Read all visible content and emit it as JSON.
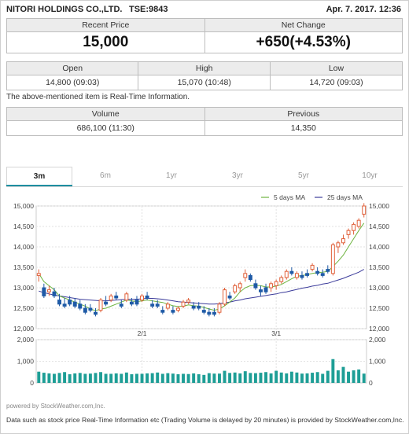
{
  "header": {
    "company": "NITORI HOLDINGS CO.,LTD.",
    "code": "TSE:9843",
    "datetime": "Apr. 7. 2017. 12:36"
  },
  "quote": {
    "recent_price_label": "Recent Price",
    "recent_price": "15,000",
    "net_change_label": "Net Change",
    "net_change": "+650(+4.53%)"
  },
  "ohl": {
    "open_label": "Open",
    "open": "14,800 (09:03)",
    "high_label": "High",
    "high": "15,070 (10:48)",
    "low_label": "Low",
    "low": "14,720 (09:03)"
  },
  "realtime_note": "The above-mentioned item is Real-Time Information.",
  "volume_block": {
    "volume_label": "Volume",
    "volume": "686,100 (11:30)",
    "previous_label": "Previous",
    "previous": "14,350"
  },
  "tabs": [
    "3m",
    "6m",
    "1yr",
    "3yr",
    "5yr",
    "10yr"
  ],
  "active_tab": "3m",
  "powered_by": "powered by StockWeather.com,Inc.",
  "footer": "Data such as stock price Real-Time Information etc (Trading Volume is delayed by 20 minutes) is provided by StockWeather.com,Inc.",
  "colors": {
    "up_candle": "#e0603a",
    "down_candle": "#1f5aa6",
    "ma5": "#6db33f",
    "ma25": "#3b3b9a",
    "volume_bar": "#1e9e96",
    "tab_accent": "#1e8fa0"
  },
  "chart_data": {
    "type": "candlestick",
    "legend": [
      "5 days MA",
      "25 days MA"
    ],
    "legend_position": "top-right",
    "price_axis": {
      "ylim": [
        12000,
        15000
      ],
      "ticks": [
        "15,000",
        "14,500",
        "14,000",
        "13,500",
        "13,000",
        "12,500",
        "12,000"
      ]
    },
    "volume_axis": {
      "ylim": [
        0,
        2000
      ],
      "ticks": [
        "2,000",
        "1,000",
        "0"
      ]
    },
    "x_labels": [
      {
        "index": 20,
        "label": "2/1"
      },
      {
        "index": 46,
        "label": "3/1"
      }
    ],
    "candles": [
      {
        "o": 13300,
        "h": 13450,
        "l": 13150,
        "c": 13350
      },
      {
        "o": 13000,
        "h": 13100,
        "l": 12750,
        "c": 12800
      },
      {
        "o": 12900,
        "h": 13050,
        "l": 12800,
        "c": 12950
      },
      {
        "o": 12900,
        "h": 13000,
        "l": 12750,
        "c": 12800
      },
      {
        "o": 12700,
        "h": 12850,
        "l": 12550,
        "c": 12600
      },
      {
        "o": 12600,
        "h": 12750,
        "l": 12500,
        "c": 12550
      },
      {
        "o": 12700,
        "h": 12800,
        "l": 12550,
        "c": 12600
      },
      {
        "o": 12650,
        "h": 12750,
        "l": 12500,
        "c": 12550
      },
      {
        "o": 12600,
        "h": 12700,
        "l": 12450,
        "c": 12500
      },
      {
        "o": 12500,
        "h": 12600,
        "l": 12350,
        "c": 12400
      },
      {
        "o": 12500,
        "h": 12600,
        "l": 12400,
        "c": 12450
      },
      {
        "o": 12400,
        "h": 12500,
        "l": 12300,
        "c": 12350
      },
      {
        "o": 12450,
        "h": 12750,
        "l": 12400,
        "c": 12700
      },
      {
        "o": 12650,
        "h": 12800,
        "l": 12550,
        "c": 12600
      },
      {
        "o": 12700,
        "h": 12850,
        "l": 12650,
        "c": 12800
      },
      {
        "o": 12800,
        "h": 12900,
        "l": 12700,
        "c": 12750
      },
      {
        "o": 12600,
        "h": 12700,
        "l": 12500,
        "c": 12550
      },
      {
        "o": 12700,
        "h": 12900,
        "l": 12650,
        "c": 12850
      },
      {
        "o": 12650,
        "h": 12750,
        "l": 12550,
        "c": 12600
      },
      {
        "o": 12700,
        "h": 12800,
        "l": 12550,
        "c": 12600
      },
      {
        "o": 12700,
        "h": 12850,
        "l": 12650,
        "c": 12800
      },
      {
        "o": 12800,
        "h": 12900,
        "l": 12700,
        "c": 12750
      },
      {
        "o": 12600,
        "h": 12700,
        "l": 12500,
        "c": 12550
      },
      {
        "o": 12600,
        "h": 12700,
        "l": 12500,
        "c": 12550
      },
      {
        "o": 12450,
        "h": 12550,
        "l": 12350,
        "c": 12400
      },
      {
        "o": 12500,
        "h": 12650,
        "l": 12450,
        "c": 12600
      },
      {
        "o": 12450,
        "h": 12550,
        "l": 12350,
        "c": 12400
      },
      {
        "o": 12450,
        "h": 12550,
        "l": 12400,
        "c": 12500
      },
      {
        "o": 12550,
        "h": 12700,
        "l": 12500,
        "c": 12650
      },
      {
        "o": 12650,
        "h": 12750,
        "l": 12600,
        "c": 12700
      },
      {
        "o": 12550,
        "h": 12650,
        "l": 12450,
        "c": 12500
      },
      {
        "o": 12550,
        "h": 12650,
        "l": 12450,
        "c": 12500
      },
      {
        "o": 12450,
        "h": 12550,
        "l": 12350,
        "c": 12400
      },
      {
        "o": 12400,
        "h": 12500,
        "l": 12300,
        "c": 12350
      },
      {
        "o": 12400,
        "h": 12500,
        "l": 12300,
        "c": 12350
      },
      {
        "o": 12400,
        "h": 12650,
        "l": 12350,
        "c": 12600
      },
      {
        "o": 12600,
        "h": 13000,
        "l": 12550,
        "c": 12950
      },
      {
        "o": 12800,
        "h": 12900,
        "l": 12700,
        "c": 12750
      },
      {
        "o": 12900,
        "h": 13100,
        "l": 12850,
        "c": 13050
      },
      {
        "o": 13000,
        "h": 13150,
        "l": 12900,
        "c": 13100
      },
      {
        "o": 13250,
        "h": 13450,
        "l": 13150,
        "c": 13350
      },
      {
        "o": 13300,
        "h": 13350,
        "l": 13150,
        "c": 13200
      },
      {
        "o": 13100,
        "h": 13200,
        "l": 12950,
        "c": 13000
      },
      {
        "o": 12950,
        "h": 13050,
        "l": 12800,
        "c": 12900
      },
      {
        "o": 13000,
        "h": 13100,
        "l": 12850,
        "c": 12900
      },
      {
        "o": 13000,
        "h": 13150,
        "l": 12900,
        "c": 13100
      },
      {
        "o": 13050,
        "h": 13200,
        "l": 12950,
        "c": 13150
      },
      {
        "o": 13150,
        "h": 13300,
        "l": 13100,
        "c": 13250
      },
      {
        "o": 13250,
        "h": 13450,
        "l": 13200,
        "c": 13400
      },
      {
        "o": 13400,
        "h": 13500,
        "l": 13300,
        "c": 13350
      },
      {
        "o": 13250,
        "h": 13400,
        "l": 13200,
        "c": 13350
      },
      {
        "o": 13300,
        "h": 13400,
        "l": 13200,
        "c": 13250
      },
      {
        "o": 13350,
        "h": 13450,
        "l": 13250,
        "c": 13300
      },
      {
        "o": 13450,
        "h": 13600,
        "l": 13400,
        "c": 13550
      },
      {
        "o": 13400,
        "h": 13500,
        "l": 13300,
        "c": 13350
      },
      {
        "o": 13350,
        "h": 13450,
        "l": 13250,
        "c": 13300
      },
      {
        "o": 13450,
        "h": 13550,
        "l": 13350,
        "c": 13400
      },
      {
        "o": 13350,
        "h": 14100,
        "l": 13300,
        "c": 14050
      },
      {
        "o": 14000,
        "h": 14150,
        "l": 13850,
        "c": 14100
      },
      {
        "o": 14100,
        "h": 14300,
        "l": 14050,
        "c": 14200
      },
      {
        "o": 14300,
        "h": 14450,
        "l": 14200,
        "c": 14400
      },
      {
        "o": 14400,
        "h": 14600,
        "l": 14300,
        "c": 14550
      },
      {
        "o": 14500,
        "h": 14700,
        "l": 14450,
        "c": 14650
      },
      {
        "o": 14800,
        "h": 15070,
        "l": 14720,
        "c": 15000
      }
    ],
    "ma5": [
      13350,
      13150,
      13050,
      12950,
      12800,
      12750,
      12700,
      12650,
      12600,
      12550,
      12480,
      12440,
      12480,
      12500,
      12550,
      12600,
      12650,
      12700,
      12680,
      12660,
      12680,
      12700,
      12680,
      12660,
      12640,
      12600,
      12560,
      12540,
      12550,
      12580,
      12560,
      12550,
      12520,
      12480,
      12450,
      12480,
      12560,
      12650,
      12750,
      12900,
      13000,
      13050,
      13060,
      13050,
      13020,
      13020,
      13040,
      13080,
      13150,
      13220,
      13280,
      13300,
      13320,
      13350,
      13370,
      13380,
      13400,
      13520,
      13650,
      13800,
      14000,
      14200,
      14400,
      14580
    ],
    "ma25": [
      12920,
      12880,
      12850,
      12820,
      12800,
      12780,
      12760,
      12740,
      12720,
      12710,
      12700,
      12690,
      12680,
      12680,
      12690,
      12700,
      12710,
      12720,
      12720,
      12720,
      12730,
      12740,
      12740,
      12730,
      12720,
      12700,
      12680,
      12660,
      12650,
      12640,
      12630,
      12620,
      12610,
      12600,
      12600,
      12610,
      12630,
      12650,
      12680,
      12700,
      12730,
      12750,
      12770,
      12790,
      12810,
      12830,
      12850,
      12880,
      12900,
      12930,
      12960,
      12990,
      13010,
      13040,
      13060,
      13090,
      13110,
      13150,
      13190,
      13230,
      13280,
      13330,
      13380,
      13450
    ],
    "volume": [
      520,
      470,
      440,
      420,
      460,
      500,
      400,
      440,
      460,
      420,
      430,
      460,
      500,
      420,
      420,
      440,
      420,
      480,
      400,
      420,
      420,
      440,
      450,
      480,
      420,
      450,
      430,
      400,
      420,
      410,
      440,
      400,
      370,
      450,
      430,
      430,
      560,
      460,
      480,
      440,
      540,
      460,
      450,
      470,
      500,
      440,
      560,
      480,
      440,
      520,
      480,
      430,
      440,
      470,
      500,
      420,
      560,
      1100,
      580,
      740,
      520,
      580,
      620,
      430
    ]
  }
}
